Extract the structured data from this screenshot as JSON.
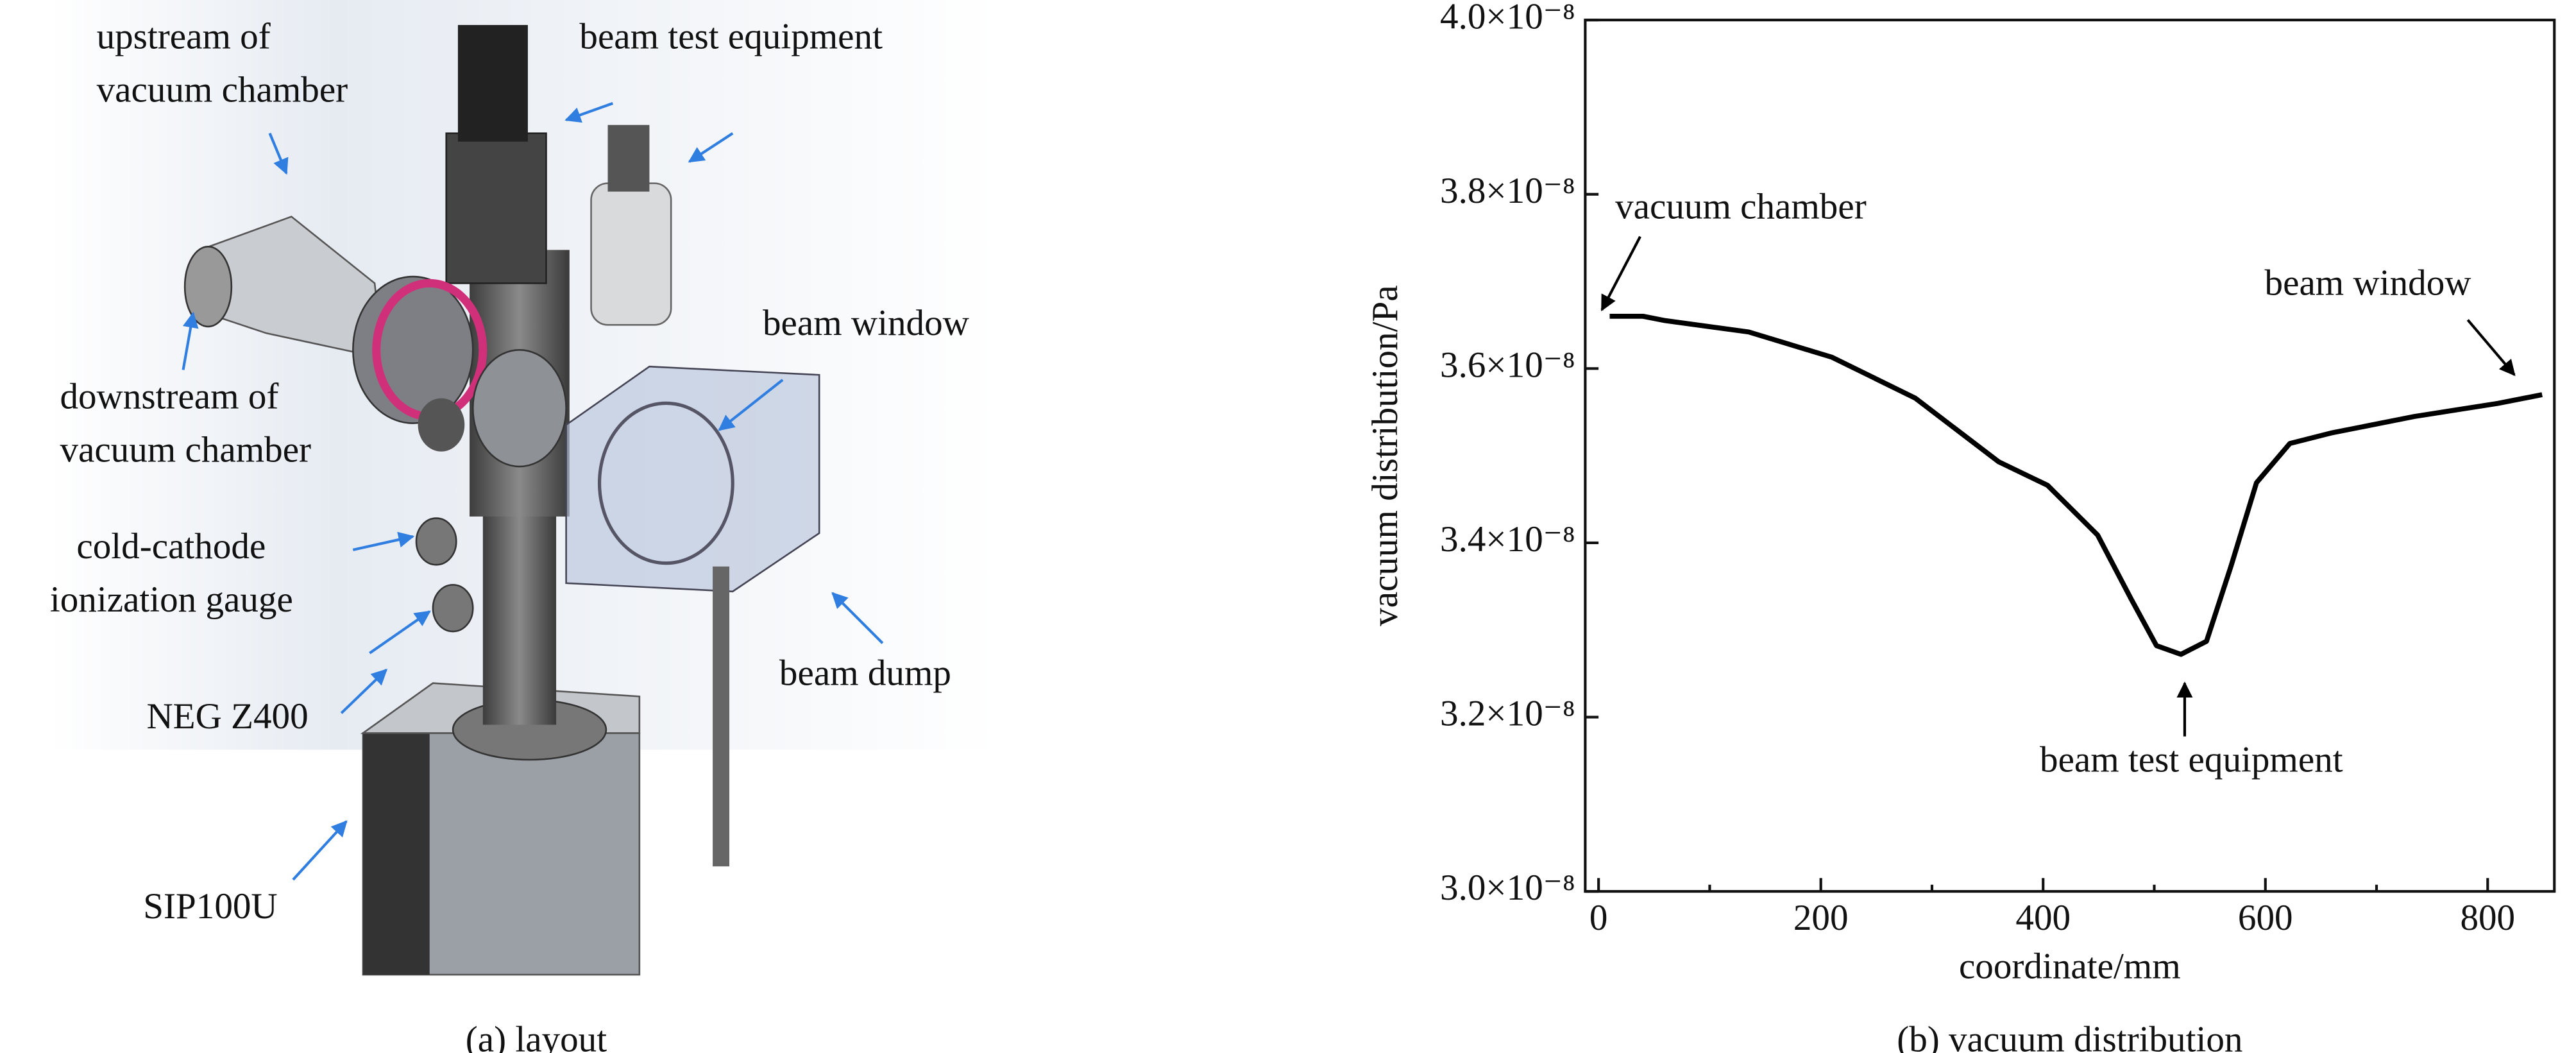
{
  "chart_data": {
    "type": "line",
    "x_label": "coordinate/mm",
    "y_label": "vacuum distribution/Pa",
    "x": [
      10,
      40,
      60,
      135,
      210,
      285,
      360,
      404,
      449,
      479,
      502,
      524,
      547,
      569,
      592,
      622,
      659,
      734,
      809,
      849
    ],
    "series": [
      {
        "color": "#000000",
        "values": [
          3.66e-08,
          3.66e-08,
          3.655e-08,
          3.642e-08,
          3.613e-08,
          3.566e-08,
          3.493e-08,
          3.466e-08,
          3.409e-08,
          3.336e-08,
          3.282e-08,
          3.272e-08,
          3.287e-08,
          3.373e-08,
          3.469e-08,
          3.514e-08,
          3.526e-08,
          3.545e-08,
          3.56e-08,
          3.57e-08
        ]
      }
    ],
    "xlim": [
      -12,
      860
    ],
    "ylim": [
      3e-08,
      4e-08
    ],
    "xticks": [
      0,
      200,
      400,
      600,
      800
    ],
    "xminorticks": [
      100,
      300,
      500,
      700
    ],
    "yticks": [
      {
        "value": 3e-08,
        "label": "3.0×10⁻⁸"
      },
      {
        "value": 3.2e-08,
        "label": "3.2×10⁻⁸"
      },
      {
        "value": 3.4e-08,
        "label": "3.4×10⁻⁸"
      },
      {
        "value": 3.6e-08,
        "label": "3.6×10⁻⁸"
      },
      {
        "value": 3.8e-08,
        "label": "3.8×10⁻⁸"
      },
      {
        "value": 4e-08,
        "label": "4.0×10⁻⁸"
      }
    ],
    "annotations": [
      "vacuum chamber",
      "beam window",
      "beam test equipment"
    ],
    "grid": false
  },
  "figure": {
    "captions": [
      "(a) layout",
      "(b) vacuum distribution"
    ],
    "layout_labels": [
      {
        "lines": [
          "upstream of",
          "vacuum chamber"
        ]
      },
      {
        "lines": [
          "beam test equipment"
        ]
      },
      {
        "lines": [
          "downstream of",
          "vacuum chamber"
        ]
      },
      {
        "lines": [
          "beam window"
        ]
      },
      {
        "lines": [
          "cold-cathode",
          "ionization gauge"
        ]
      },
      {
        "lines": [
          "NEG Z400"
        ]
      },
      {
        "lines": [
          "beam dump"
        ]
      },
      {
        "lines": [
          "SIP100U"
        ]
      }
    ]
  }
}
